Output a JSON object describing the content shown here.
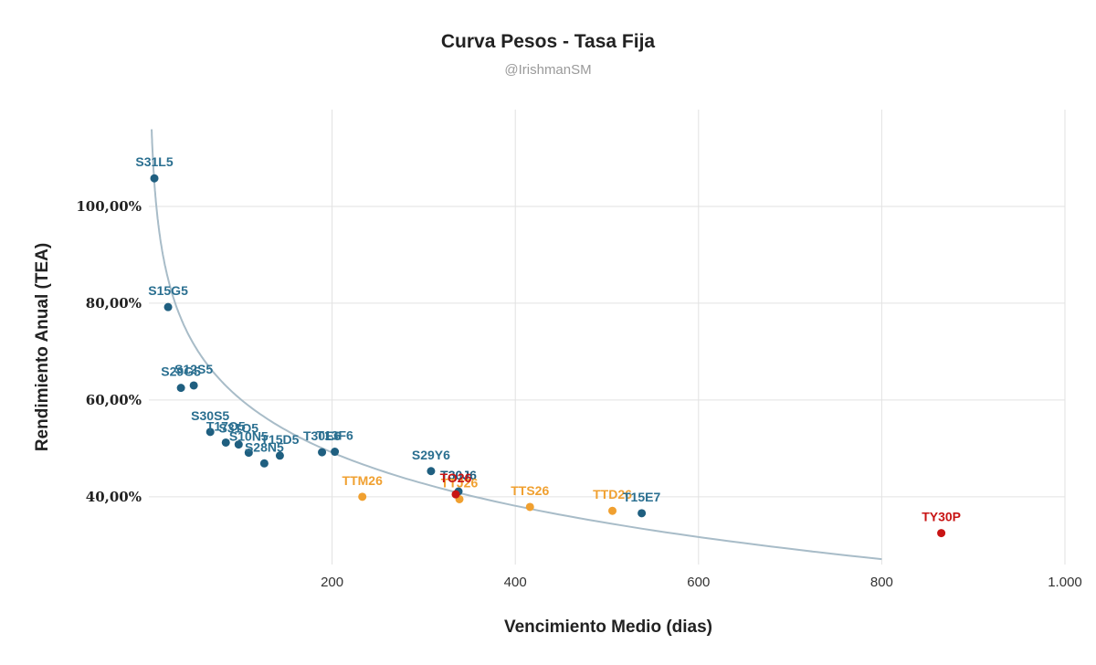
{
  "chart_data": {
    "type": "scatter",
    "title": "Curva Pesos - Tasa Fija",
    "subtitle": "@IrishmanSM",
    "xlabel": "Vencimiento Medio (dias)",
    "ylabel": "Rendimiento Anual (TEA)",
    "xlim": [
      0,
      1000
    ],
    "ylim": [
      26,
      120
    ],
    "x_ticks": [
      200,
      400,
      600,
      800,
      1000
    ],
    "x_tick_labels": [
      "200",
      "400",
      "600",
      "800",
      "1.000"
    ],
    "y_ticks": [
      40,
      60,
      80,
      100
    ],
    "y_tick_labels": [
      "40,00%",
      "60,00%",
      "80,00%",
      "100,00%"
    ],
    "grid": true,
    "colors": {
      "lecap": "#1f5f80",
      "bond": "#1f5f80",
      "dual": "#f0a030",
      "cer": "#c81414",
      "trend": "#a8bcc8",
      "grid": "#e2e2e2"
    },
    "points": [
      {
        "label": "S31L5",
        "x": 6,
        "y": 105.8,
        "group": "lecap"
      },
      {
        "label": "S15G5",
        "x": 21,
        "y": 79.2,
        "group": "lecap"
      },
      {
        "label": "S29G5",
        "x": 35,
        "y": 62.5,
        "group": "lecap"
      },
      {
        "label": "S12S5",
        "x": 49,
        "y": 63.0,
        "group": "lecap"
      },
      {
        "label": "S30S5",
        "x": 67,
        "y": 53.4,
        "group": "lecap"
      },
      {
        "label": "T17O5",
        "x": 84,
        "y": 51.2,
        "group": "lecap"
      },
      {
        "label": "S31O5",
        "x": 98,
        "y": 50.8,
        "group": "lecap"
      },
      {
        "label": "S10N5",
        "x": 109,
        "y": 49.1,
        "group": "lecap"
      },
      {
        "label": "S28N5",
        "x": 126,
        "y": 46.9,
        "group": "lecap"
      },
      {
        "label": "T15D5",
        "x": 143,
        "y": 48.5,
        "group": "lecap"
      },
      {
        "label": "T30E6",
        "x": 189,
        "y": 49.2,
        "group": "lecap"
      },
      {
        "label": "T13F6",
        "x": 203,
        "y": 49.3,
        "group": "lecap"
      },
      {
        "label": "S29Y6",
        "x": 308,
        "y": 45.3,
        "group": "lecap"
      },
      {
        "label": "T30J6",
        "x": 338,
        "y": 41.1,
        "group": "bond"
      },
      {
        "label": "TTM26",
        "x": 233,
        "y": 40.0,
        "group": "dual"
      },
      {
        "label": "TTJ26",
        "x": 339,
        "y": 39.5,
        "group": "dual"
      },
      {
        "label": "TO26",
        "x": 335,
        "y": 40.5,
        "group": "cer"
      },
      {
        "label": "TTS26",
        "x": 416,
        "y": 37.9,
        "group": "dual"
      },
      {
        "label": "TTD26",
        "x": 506,
        "y": 37.1,
        "group": "dual"
      },
      {
        "label": "T15E7",
        "x": 538,
        "y": 36.6,
        "group": "lecap"
      },
      {
        "label": "TY30P",
        "x": 865,
        "y": 32.5,
        "group": "cer"
      }
    ],
    "trendline": {
      "type": "logarithmic",
      "a": 133.4,
      "b": -15.9,
      "x_range": [
        3,
        800
      ]
    }
  }
}
